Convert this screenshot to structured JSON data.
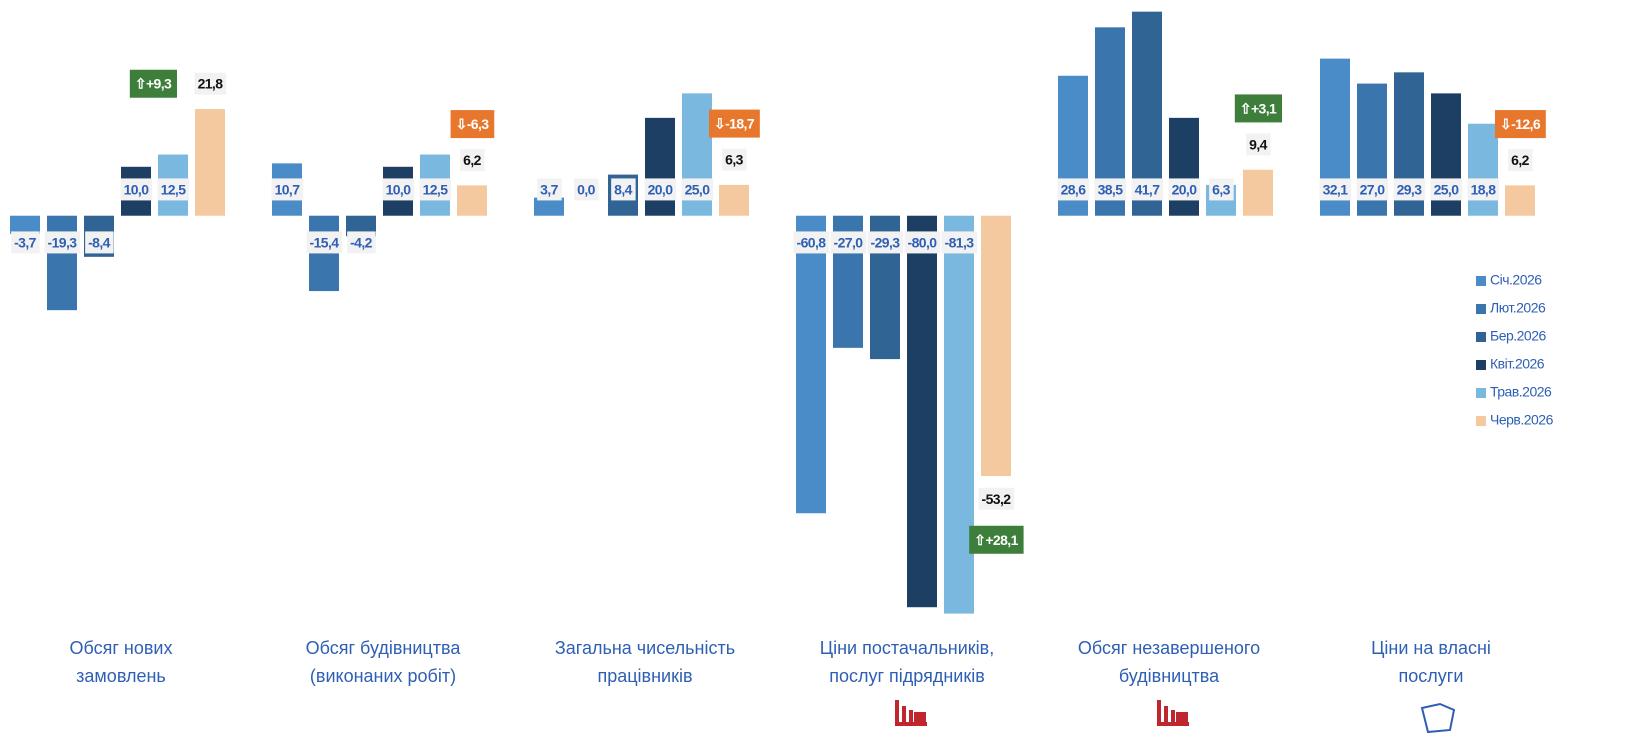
{
  "chart_data": {
    "type": "bar",
    "categories": [
      "Обсяг  нових\nзамовлень",
      "Обсяг  будівництва\n(виконаних робіт)",
      "Загальна чисельність\nпрацівників",
      "Ціни постачальників,\nпослуг підрядників",
      "Обсяг незавершеного\nбудівництва",
      "Ціни на власні\nпослуги"
    ],
    "series": [
      {
        "name": "Січ.2026",
        "color": "#4a8cc8",
        "values": [
          -3.7,
          10.7,
          3.7,
          -60.8,
          28.6,
          32.1
        ],
        "value_labels": [
          "-3,7",
          "10,7",
          "3,7",
          "-60,8",
          "28,6",
          "32,1"
        ]
      },
      {
        "name": "Лют.2026",
        "color": "#3a76ad",
        "values": [
          -19.3,
          -15.4,
          0.0,
          -27.0,
          38.5,
          27.0
        ],
        "value_labels": [
          "-19,3",
          "-15,4",
          "0,0",
          "-27,0",
          "38,5",
          "27,0"
        ]
      },
      {
        "name": "Бер.2026",
        "color": "#2f6494",
        "values": [
          -8.4,
          -4.2,
          8.4,
          -29.3,
          41.7,
          29.3
        ],
        "value_labels": [
          "-8,4",
          "-4,2",
          "8,4",
          "-29,3",
          "41,7",
          "29,3"
        ]
      },
      {
        "name": "Квіт.2026",
        "color": "#1d3f64",
        "values": [
          10.0,
          10.0,
          20.0,
          -80.0,
          20.0,
          25.0
        ],
        "value_labels": [
          "10,0",
          "10,0",
          "20,0",
          "-80,0",
          "20,0",
          "25,0"
        ]
      },
      {
        "name": "Трав.2026",
        "color": "#7ab8df",
        "values": [
          12.5,
          12.5,
          25.0,
          -81.3,
          6.3,
          18.8
        ],
        "value_labels": [
          "12,5",
          "12,5",
          "25,0",
          "-81,3",
          "6,3",
          "18,8"
        ]
      },
      {
        "name": "Черв.2026",
        "color": "#f5c9a0",
        "values": [
          21.8,
          6.2,
          6.3,
          -53.2,
          9.4,
          6.2
        ],
        "value_labels": [
          "21,8",
          "6,2",
          "6,3",
          "-53,2",
          "9,4",
          "6,2"
        ]
      }
    ],
    "change_labels": [
      "⇧+9,3",
      "⇩-6,3",
      "⇩-18,7",
      "⇧+28,1",
      "⇧+3,1",
      "⇩-12,6"
    ],
    "change_colors": [
      "#3d7f3a",
      "#e8772e",
      "#e8772e",
      "#3d7f3a",
      "#3d7f3a",
      "#e8772e"
    ],
    "ylim": [
      -82,
      44
    ]
  }
}
